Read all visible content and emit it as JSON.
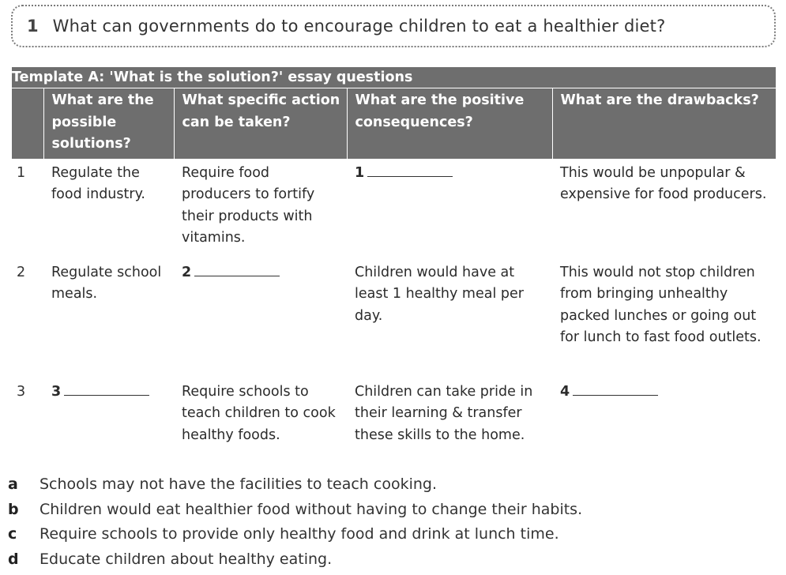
{
  "question": {
    "number": "1",
    "text": "What can governments do to encourage children to eat a healthier diet?"
  },
  "template": {
    "title": "Template A: 'What is the solution?' essay questions",
    "headers": [
      "What are the possible solutions?",
      "What specific action can be taken?",
      "What are the positive consequences?",
      "What are the drawbacks?"
    ],
    "rows": [
      {
        "num": "1",
        "solution": "Regulate the food industry.",
        "action": "Require food producers to fortify their products with vitamins.",
        "positive_blank": "1",
        "drawback": "This would be unpopular & expensive for food producers."
      },
      {
        "num": "2",
        "solution": "Regulate school meals.",
        "action_blank": "2",
        "positive": "Children would have at least 1 healthy meal per day.",
        "drawback": "This would not stop children from bringing unhealthy packed lunches or going out for lunch to fast food outlets."
      },
      {
        "num": "3",
        "solution_blank": "3",
        "action": "Require schools to teach children to cook healthy foods.",
        "positive": "Children can take pride in their learning & transfer these skills to the home.",
        "drawback_blank": "4"
      }
    ]
  },
  "options": [
    {
      "letter": "a",
      "text": "Schools may not have the facilities to teach cooking."
    },
    {
      "letter": "b",
      "text": "Children would eat healthier food without having to change their habits."
    },
    {
      "letter": "c",
      "text": "Require schools to provide only healthy food and drink at lunch time."
    },
    {
      "letter": "d",
      "text": "Educate children about healthy eating."
    }
  ]
}
